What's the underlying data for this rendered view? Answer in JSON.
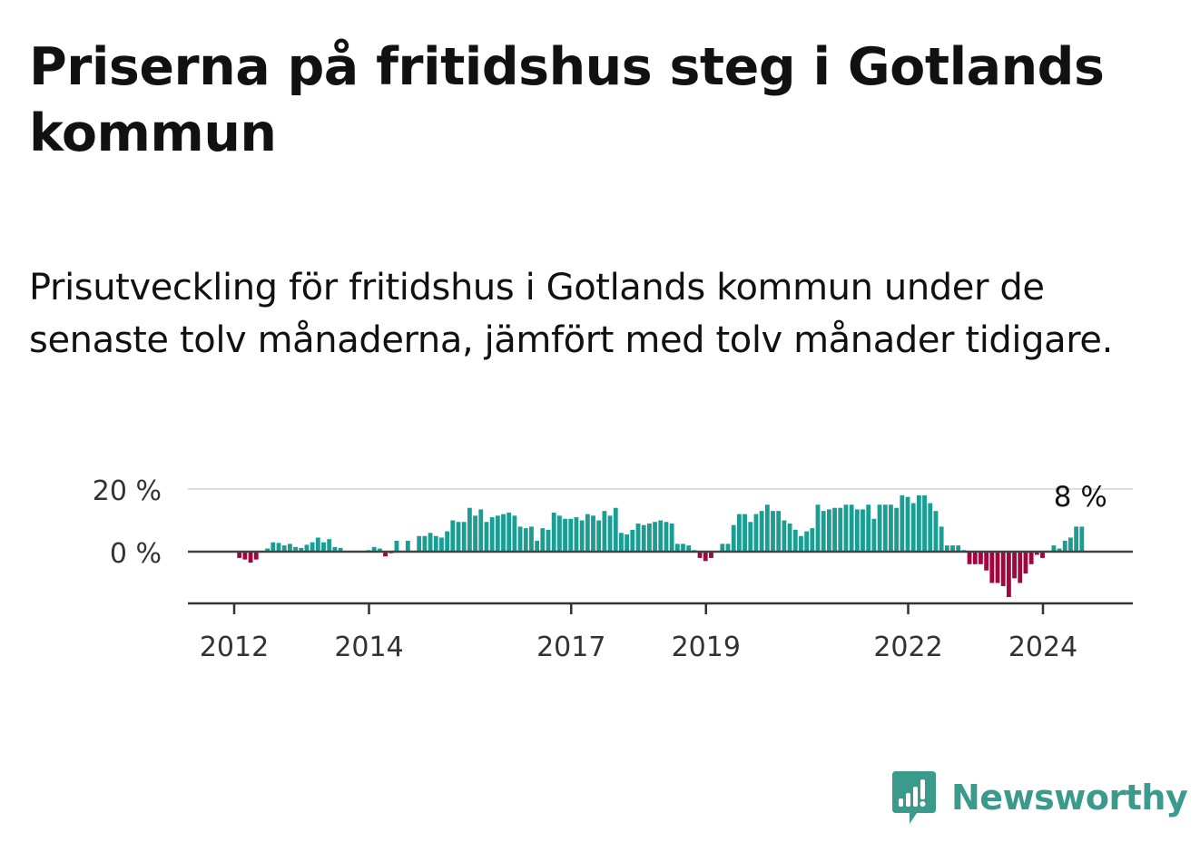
{
  "title": "Priserna på fritidshus steg i Gotlands kommun",
  "subtitle": "Prisutveckling för fritidshus i Gotlands kommun under de senaste tolv månaderna, jämfört med tolv månader tidigare.",
  "brand": {
    "name": "Newsworthy",
    "color": "#3a9a8c"
  },
  "colors": {
    "positive": "#1a9e93",
    "negative": "#a3053f",
    "grid": "#dddddd",
    "axis": "#333333"
  },
  "chart_data": {
    "type": "bar",
    "ylim": [
      -16,
      22
    ],
    "yticks": [
      {
        "value": 0,
        "label": "0 %"
      },
      {
        "value": 20,
        "label": "20 %"
      }
    ],
    "xticks": [
      {
        "value": 2012,
        "label": "2012"
      },
      {
        "value": 2014,
        "label": "2014"
      },
      {
        "value": 2017,
        "label": "2017"
      },
      {
        "value": 2019,
        "label": "2019"
      },
      {
        "value": 2022,
        "label": "2022"
      },
      {
        "value": 2024,
        "label": "2024"
      }
    ],
    "start_year": 2011.41,
    "points_per_year": 12,
    "values": [
      0,
      0,
      0,
      0,
      0,
      0,
      0,
      0,
      -2,
      -2.5,
      -3.5,
      -2.5,
      0,
      1,
      3,
      2.8,
      2,
      2.5,
      1.5,
      1.2,
      2.2,
      3,
      4.5,
      3,
      4,
      1.5,
      1.2,
      0.2,
      0.2,
      0.2,
      0.2,
      0.5,
      1.5,
      1,
      -1.5,
      -0.5,
      3.5,
      0.3,
      3.5,
      0.3,
      5,
      5,
      6,
      5,
      4.5,
      6.5,
      10,
      9.5,
      9.5,
      14,
      11.5,
      13.5,
      9.5,
      11,
      11.5,
      12,
      12.5,
      11.5,
      8,
      7.5,
      8,
      3.5,
      7.5,
      7,
      12.5,
      11.5,
      10.5,
      10.5,
      11,
      10,
      12,
      11.5,
      10,
      13,
      11.5,
      14,
      6,
      5.5,
      7,
      9,
      8.5,
      9,
      9.5,
      10,
      9.5,
      9,
      2.5,
      2.5,
      2,
      0.5,
      -2,
      -3,
      -2,
      0,
      2.5,
      2.5,
      8.5,
      12,
      12,
      9.5,
      12,
      13,
      15,
      13,
      13,
      10,
      9,
      7,
      5,
      6.5,
      7.5,
      15,
      13,
      13.5,
      14,
      14,
      15,
      15,
      13.5,
      13.5,
      15,
      10.5,
      15,
      15,
      15,
      14,
      18,
      17.5,
      15.5,
      18,
      18,
      15.5,
      13,
      8,
      2,
      2,
      2,
      0.5,
      -4,
      -4,
      -4,
      -6,
      -10,
      -10,
      -11,
      -14.5,
      -8.5,
      -10,
      -7,
      -4,
      -1,
      -2,
      0,
      2,
      1,
      3.5,
      4.5,
      8,
      8
    ],
    "annotation": {
      "label": "8 %",
      "value": 8
    }
  }
}
